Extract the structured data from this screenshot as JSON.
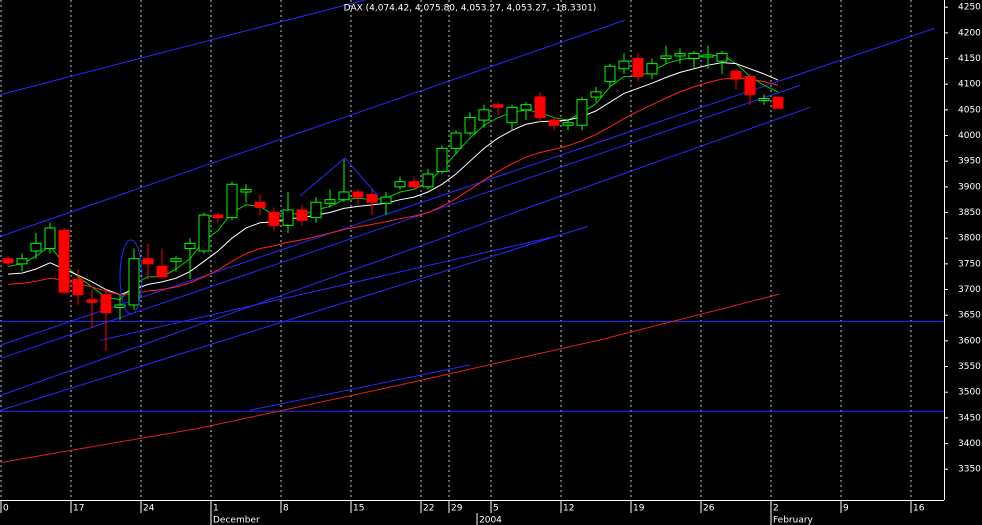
{
  "chart_data": {
    "type": "candlestick",
    "title": "DAX (4,074.42, 4,075.80, 4,053.27, 4,053.27, -18.3301)",
    "categories": [
      "0",
      null,
      null,
      null,
      null,
      "17",
      null,
      null,
      null,
      null,
      "24",
      null,
      null,
      null,
      null,
      "1",
      null,
      null,
      null,
      null,
      "8",
      null,
      null,
      null,
      null,
      "15",
      null,
      null,
      null,
      null,
      "22",
      null,
      "29",
      null,
      null,
      "5",
      null,
      null,
      null,
      null,
      "12",
      null,
      null,
      null,
      null,
      "19",
      null,
      null,
      null,
      null,
      "26",
      null,
      null,
      null,
      null,
      "2",
      null,
      null,
      null,
      null,
      "9",
      null,
      null,
      null,
      null,
      "16"
    ],
    "months": [
      null,
      null,
      null,
      null,
      null,
      null,
      null,
      null,
      null,
      null,
      null,
      null,
      null,
      null,
      null,
      "December",
      null,
      null,
      null,
      null,
      null,
      null,
      null,
      null,
      null,
      null,
      null,
      null,
      null,
      null,
      null,
      null,
      null,
      null,
      "2004",
      null,
      null,
      null,
      null,
      null,
      null,
      null,
      null,
      null,
      null,
      null,
      null,
      null,
      null,
      null,
      null,
      null,
      null,
      null,
      null,
      "February",
      null,
      null,
      null,
      null,
      null,
      null,
      null,
      null,
      null,
      null
    ],
    "open": [
      3760,
      3750,
      3775,
      3780,
      3815,
      3720,
      3680,
      3690,
      3665,
      3670,
      3760,
      3745,
      3755,
      3780,
      3775,
      3845,
      3840,
      3890,
      3870,
      3850,
      3825,
      3855,
      3840,
      3868,
      3875,
      3890,
      3885,
      3868,
      3900,
      3910,
      3900,
      3930,
      3975,
      4005,
      4030,
      4060,
      4025,
      4050,
      4075,
      4030,
      4020,
      4020,
      4075,
      4105,
      4130,
      4150,
      4120,
      4150,
      4155,
      4150,
      4153,
      4145,
      4125,
      4115,
      4068,
      4074.42,
      null,
      null,
      null,
      null,
      null,
      null,
      null,
      null,
      null,
      null
    ],
    "high": [
      3765,
      3770,
      3810,
      3830,
      3820,
      3740,
      3700,
      3700,
      3690,
      3780,
      3790,
      3780,
      3765,
      3800,
      3850,
      3850,
      3910,
      3905,
      3885,
      3860,
      3890,
      3865,
      3880,
      3895,
      3955,
      3895,
      3895,
      3890,
      3920,
      3920,
      3935,
      3980,
      4010,
      4045,
      4060,
      4065,
      4060,
      4065,
      4085,
      4035,
      4030,
      4075,
      4095,
      4140,
      4160,
      4160,
      4150,
      4175,
      4170,
      4165,
      4175,
      4165,
      4130,
      4120,
      4080,
      4075.8,
      null,
      null,
      null,
      null,
      null,
      null,
      null,
      null,
      null,
      null
    ],
    "low": [
      3745,
      3735,
      3760,
      3770,
      3690,
      3670,
      3625,
      3580,
      3640,
      3660,
      3720,
      3720,
      3735,
      3720,
      3770,
      3830,
      3835,
      3870,
      3845,
      3815,
      3810,
      3825,
      3830,
      3860,
      3870,
      3865,
      3845,
      3845,
      3895,
      3895,
      3895,
      3925,
      3965,
      4000,
      4015,
      4040,
      4010,
      4030,
      4025,
      4010,
      4010,
      4010,
      4065,
      4095,
      4120,
      4105,
      4110,
      4140,
      4140,
      4130,
      4130,
      4120,
      4090,
      4060,
      4060,
      4053.27,
      null,
      null,
      null,
      null,
      null,
      null,
      null,
      null,
      null,
      null
    ],
    "close": [
      3752,
      3760,
      3790,
      3820,
      3695,
      3690,
      3675,
      3655,
      3670,
      3760,
      3750,
      3725,
      3760,
      3790,
      3845,
      3840,
      3905,
      3895,
      3860,
      3825,
      3855,
      3835,
      3870,
      3875,
      3890,
      3880,
      3870,
      3880,
      3910,
      3900,
      3925,
      3975,
      4005,
      4035,
      4050,
      4055,
      4055,
      4060,
      4035,
      4020,
      4025,
      4070,
      4085,
      4135,
      4145,
      4115,
      4140,
      4155,
      4160,
      4160,
      4157,
      4160,
      4110,
      4080,
      4072,
      4053.27,
      null,
      null,
      null,
      null,
      null,
      null,
      null,
      null,
      null,
      null
    ],
    "up_color": "#00ff00",
    "down_color": "#ff0000",
    "series": [
      {
        "color": "#00d000",
        "values": [
          3745,
          3750,
          3765,
          3785,
          3750,
          3725,
          3705,
          3685,
          3680,
          3710,
          3725,
          3725,
          3740,
          3760,
          3795,
          3815,
          3850,
          3865,
          3862,
          3845,
          3850,
          3845,
          3855,
          3862,
          3875,
          3878,
          3875,
          3878,
          3890,
          3895,
          3908,
          3935,
          3965,
          3995,
          4020,
          4035,
          4045,
          4050,
          4045,
          4035,
          4030,
          4045,
          4062,
          4095,
          4115,
          4115,
          4125,
          4140,
          4148,
          4152,
          4155,
          4157,
          4140,
          4115,
          4098,
          4085,
          null,
          null,
          null,
          null,
          null,
          null,
          null,
          null,
          null,
          null
        ]
      },
      {
        "color": "#ffffff",
        "values": [
          3730,
          3732,
          3740,
          3752,
          3740,
          3728,
          3715,
          3700,
          3690,
          3700,
          3710,
          3715,
          3722,
          3735,
          3755,
          3775,
          3800,
          3820,
          3830,
          3832,
          3838,
          3840,
          3845,
          3850,
          3858,
          3862,
          3865,
          3868,
          3875,
          3880,
          3890,
          3905,
          3925,
          3950,
          3975,
          3995,
          4010,
          4022,
          4027,
          4028,
          4030,
          4037,
          4048,
          4065,
          4082,
          4092,
          4102,
          4113,
          4123,
          4130,
          4137,
          4142,
          4140,
          4130,
          4120,
          4108,
          null,
          null,
          null,
          null,
          null,
          null,
          null,
          null,
          null,
          null
        ]
      },
      {
        "color": "#ff2020",
        "values": [
          3710,
          3712,
          3716,
          3722,
          3718,
          3712,
          3705,
          3697,
          3690,
          3692,
          3697,
          3700,
          3705,
          3713,
          3725,
          3738,
          3755,
          3770,
          3780,
          3785,
          3792,
          3797,
          3803,
          3810,
          3817,
          3822,
          3827,
          3832,
          3838,
          3843,
          3850,
          3862,
          3877,
          3895,
          3913,
          3930,
          3945,
          3958,
          3967,
          3973,
          3980,
          3990,
          4002,
          4017,
          4033,
          4047,
          4060,
          4073,
          4085,
          4095,
          4103,
          4110,
          4112,
          4110,
          4105,
          4098,
          null,
          null,
          null,
          null,
          null,
          null,
          null,
          null,
          null,
          null
        ]
      }
    ],
    "trendlines": [
      {
        "color": "#2828ff",
        "x": [
          -0.5,
          25.5
        ],
        "values": [
          4080,
          4264
        ]
      },
      {
        "color": "#2828ff",
        "x": [
          -0.5,
          44.1
        ],
        "values": [
          3804,
          4225
        ]
      },
      {
        "color": "#2828ff",
        "x": [
          -0.5,
          66.2
        ],
        "values": [
          3592,
          4209
        ]
      },
      {
        "color": "#2828ff",
        "x": [
          -0.5,
          56.6
        ],
        "values": [
          3566,
          4098
        ]
      },
      {
        "color": "#2828ff",
        "x": [
          -0.5,
          57.3
        ],
        "values": [
          3494,
          4055
        ]
      },
      {
        "color": "#2828ff",
        "x": [
          -0.5,
          41.4
        ],
        "values": [
          3465,
          3823
        ]
      },
      {
        "color": "#2828ff",
        "x": [
          6.6,
          39.2
        ],
        "values": [
          3601,
          3804
        ]
      },
      {
        "color": "#2828ff",
        "x": [
          17.3,
          33
        ],
        "values": [
          3465,
          3553
        ]
      },
      {
        "color": "#e02020",
        "x": [
          -0.5,
          13.7,
          28,
          42.3,
          55.1
        ],
        "values": [
          3363,
          3430,
          3514,
          3602,
          3691
        ]
      }
    ],
    "hlines": [
      {
        "value": 3638,
        "color": "#2828ff"
      },
      {
        "value": 3463,
        "color": "#2828ff"
      }
    ],
    "ylim": [
      3290,
      4264
    ],
    "yticks": [
      3350,
      3400,
      3450,
      3500,
      3550,
      3600,
      3650,
      3700,
      3750,
      3800,
      3850,
      3900,
      3950,
      4000,
      4050,
      4100,
      4150,
      4200,
      4250
    ],
    "grid": true
  }
}
